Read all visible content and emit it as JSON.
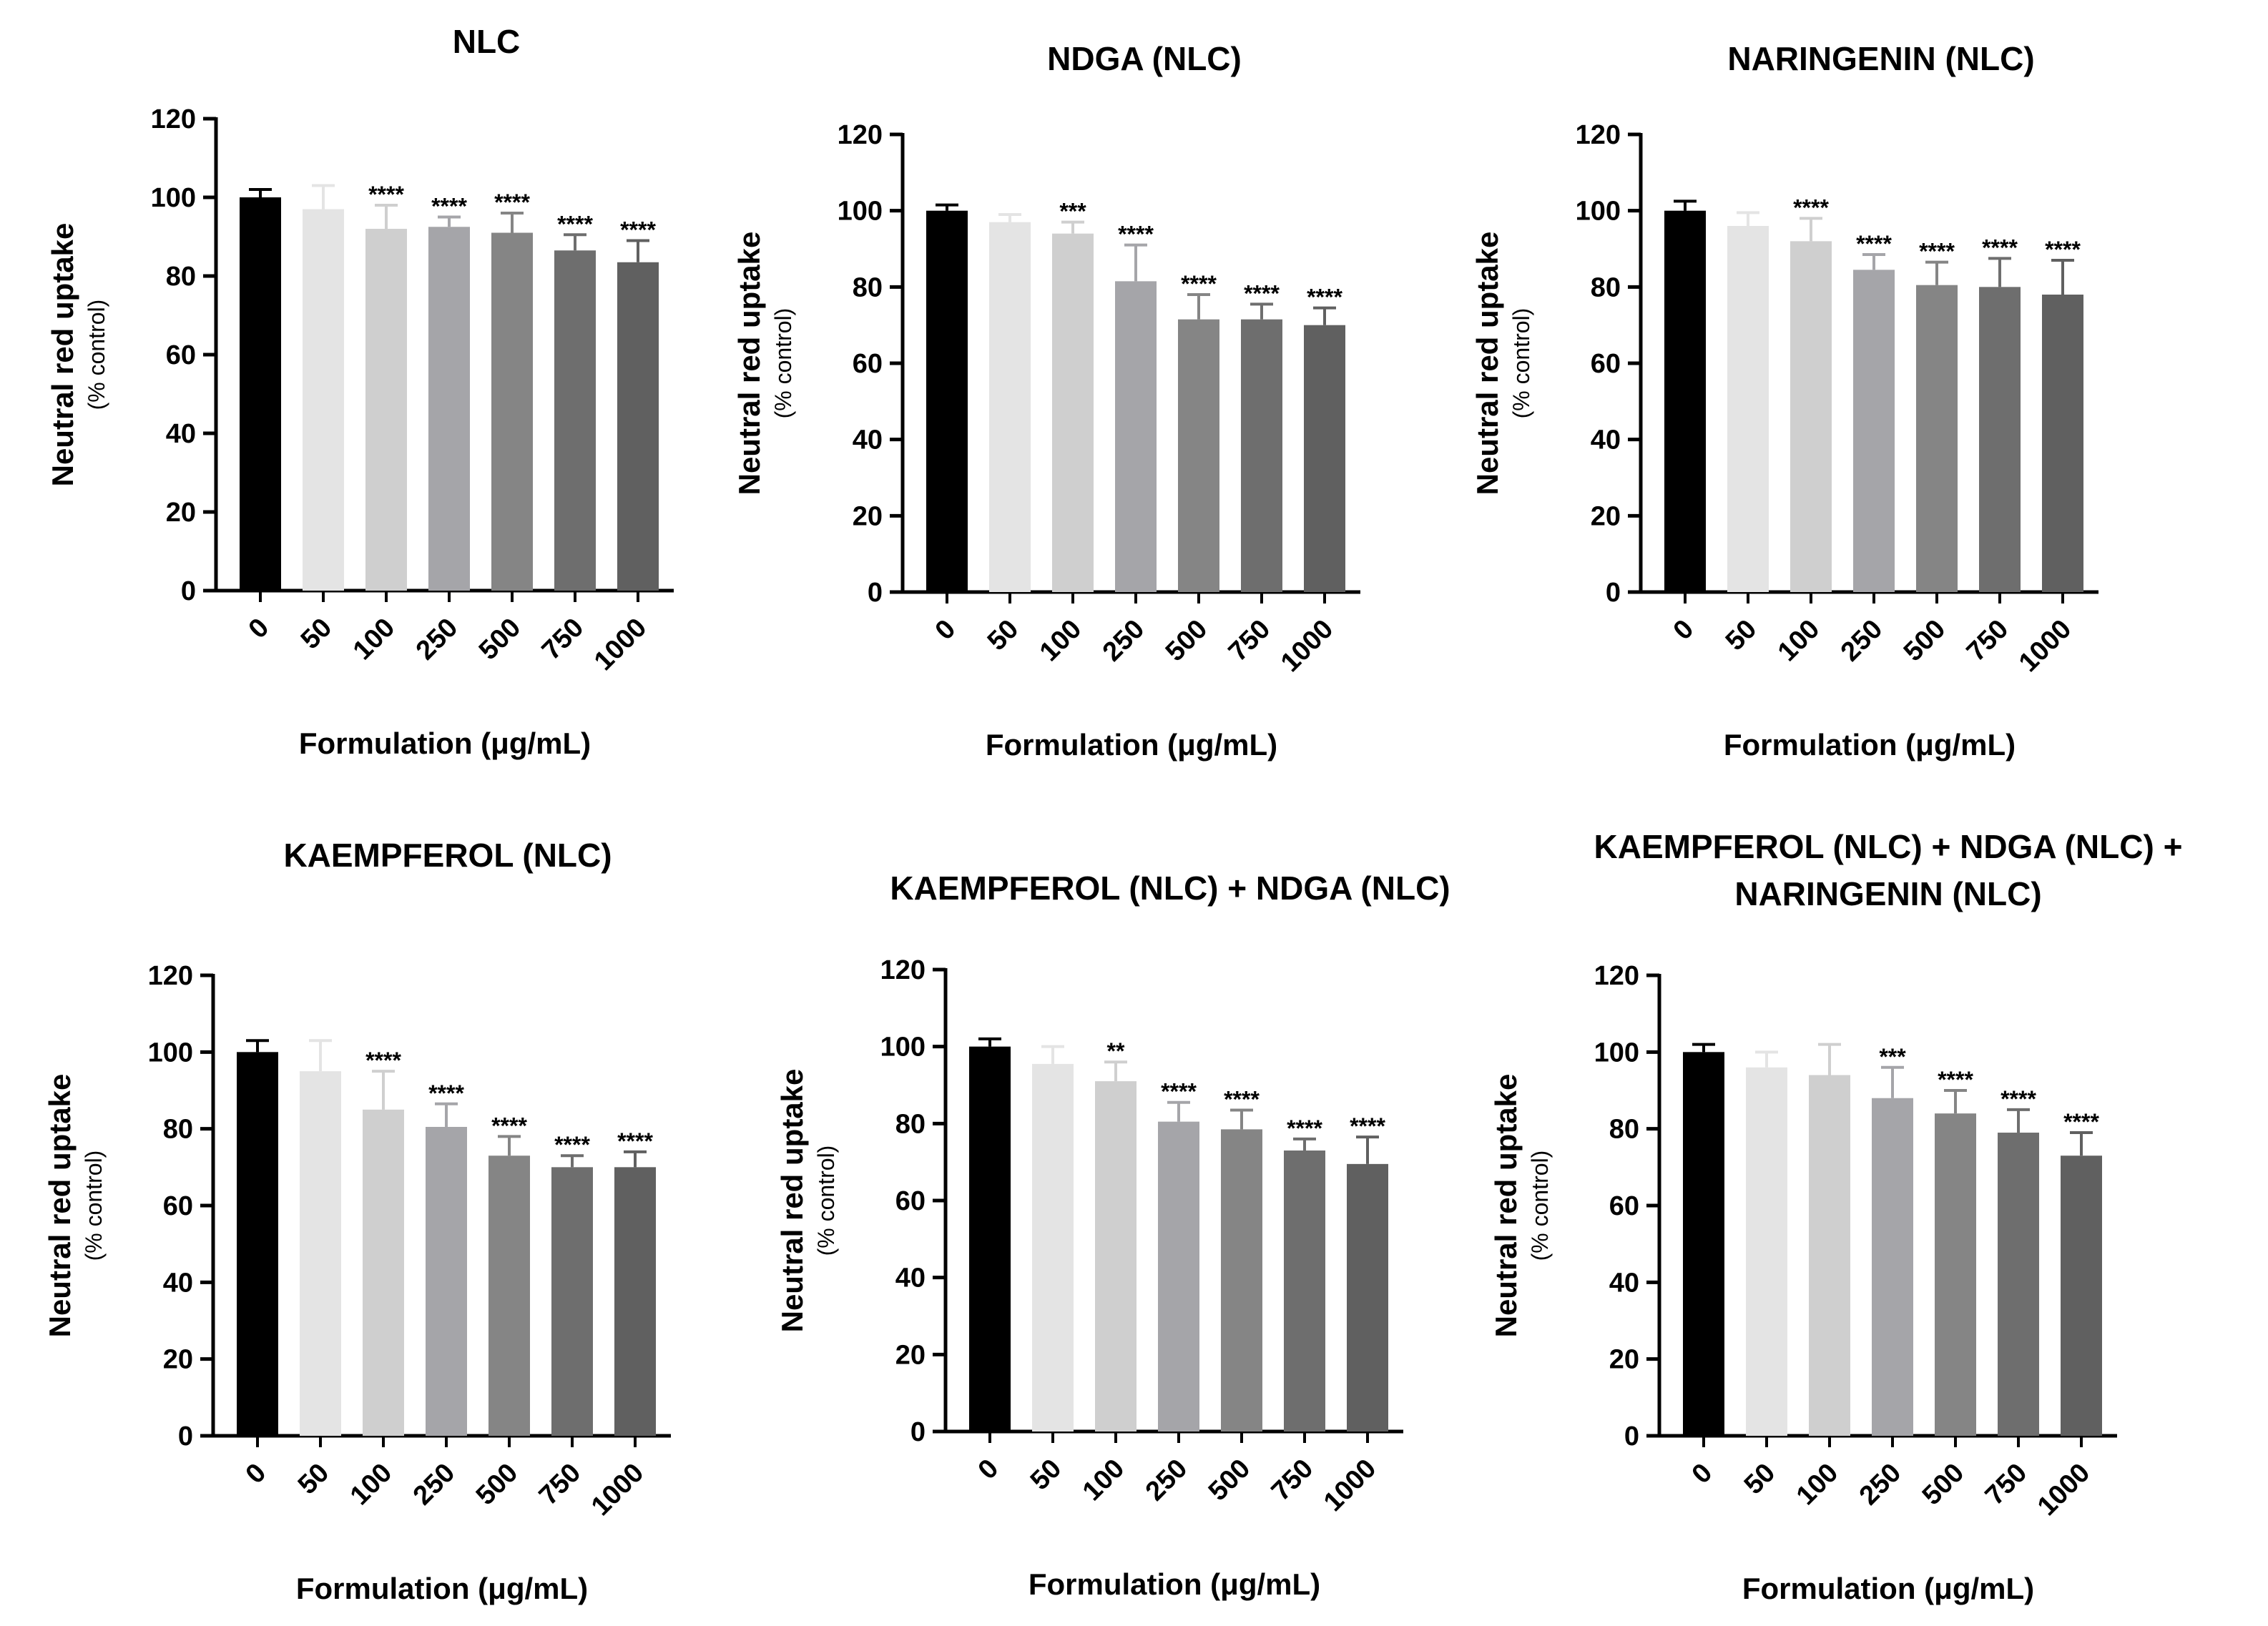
{
  "figure": {
    "ylabel": "Neutral red uptake",
    "ylabel_sub": "(% control)",
    "xlabel": "Formulation (μg/mL)"
  },
  "chart_data": [
    {
      "type": "bar",
      "title": [
        "NLC"
      ],
      "categories": [
        "0",
        "50",
        "100",
        "250",
        "500",
        "750",
        "1000"
      ],
      "values": [
        100,
        97,
        92,
        92.5,
        91,
        86.5,
        83.5
      ],
      "errors": [
        2,
        6,
        6,
        2.5,
        5,
        4,
        5.5
      ],
      "significance": [
        "",
        "",
        "****",
        "****",
        "****",
        "****",
        "****"
      ],
      "colors": [
        "#000000",
        "#e4e4e4",
        "#cfcfcf",
        "#a5a5a9",
        "#858585",
        "#6e6e6e",
        "#606060"
      ],
      "ylim": [
        0,
        120
      ],
      "yticks": [
        0,
        20,
        40,
        60,
        80,
        100,
        120
      ],
      "xlabel": "Formulation (μg/mL)",
      "ylabel": "Neutral red uptake (% control)"
    },
    {
      "type": "bar",
      "title": [
        "NDGA (NLC)"
      ],
      "categories": [
        "0",
        "50",
        "100",
        "250",
        "500",
        "750",
        "1000"
      ],
      "values": [
        100,
        97,
        94,
        81.5,
        71.5,
        71.5,
        70
      ],
      "errors": [
        1.5,
        2,
        3,
        9.5,
        6.5,
        4,
        4.5
      ],
      "significance": [
        "",
        "",
        "***",
        "****",
        "****",
        "****",
        "****"
      ],
      "colors": [
        "#000000",
        "#e4e4e4",
        "#cfcfcf",
        "#a5a5a9",
        "#858585",
        "#6e6e6e",
        "#606060"
      ],
      "ylim": [
        0,
        120
      ],
      "yticks": [
        0,
        20,
        40,
        60,
        80,
        100,
        120
      ],
      "xlabel": "Formulation (μg/mL)",
      "ylabel": "Neutral red uptake (% control)"
    },
    {
      "type": "bar",
      "title": [
        "NARINGENIN (NLC)"
      ],
      "categories": [
        "0",
        "50",
        "100",
        "250",
        "500",
        "750",
        "1000"
      ],
      "values": [
        100,
        96,
        92,
        84.5,
        80.5,
        80,
        78
      ],
      "errors": [
        2.5,
        3.5,
        6,
        4,
        6,
        7.5,
        9
      ],
      "significance": [
        "",
        "",
        "****",
        "****",
        "****",
        "****",
        "****"
      ],
      "colors": [
        "#000000",
        "#e4e4e4",
        "#cfcfcf",
        "#a5a5a9",
        "#858585",
        "#6e6e6e",
        "#606060"
      ],
      "ylim": [
        0,
        120
      ],
      "yticks": [
        0,
        20,
        40,
        60,
        80,
        100,
        120
      ],
      "xlabel": "Formulation (μg/mL)",
      "ylabel": "Neutral red uptake (% control)"
    },
    {
      "type": "bar",
      "title": [
        "KAEMPFEROL (NLC)"
      ],
      "categories": [
        "0",
        "50",
        "100",
        "250",
        "500",
        "750",
        "1000"
      ],
      "values": [
        100,
        95,
        85,
        80.5,
        73,
        70,
        70
      ],
      "errors": [
        3,
        8,
        10,
        6,
        5,
        3,
        4
      ],
      "significance": [
        "",
        "",
        "****",
        "****",
        "****",
        "****",
        "****"
      ],
      "colors": [
        "#000000",
        "#e4e4e4",
        "#cfcfcf",
        "#a5a5a9",
        "#858585",
        "#6e6e6e",
        "#606060"
      ],
      "ylim": [
        0,
        120
      ],
      "yticks": [
        0,
        20,
        40,
        60,
        80,
        100,
        120
      ],
      "xlabel": "Formulation (μg/mL)",
      "ylabel": "Neutral red uptake (% control)"
    },
    {
      "type": "bar",
      "title": [
        "KAEMPFEROL (NLC) + NDGA (NLC)"
      ],
      "categories": [
        "0",
        "50",
        "100",
        "250",
        "500",
        "750",
        "1000"
      ],
      "values": [
        100,
        95.5,
        91,
        80.5,
        78.5,
        73,
        69.5
      ],
      "errors": [
        2,
        4.5,
        5,
        5,
        5,
        3,
        7
      ],
      "significance": [
        "",
        "",
        "**",
        "****",
        "****",
        "****",
        "****"
      ],
      "colors": [
        "#000000",
        "#e4e4e4",
        "#cfcfcf",
        "#a5a5a9",
        "#858585",
        "#6e6e6e",
        "#606060"
      ],
      "ylim": [
        0,
        120
      ],
      "yticks": [
        0,
        20,
        40,
        60,
        80,
        100,
        120
      ],
      "xlabel": "Formulation (μg/mL)",
      "ylabel": "Neutral red uptake (% control)"
    },
    {
      "type": "bar",
      "title": [
        "KAEMPFEROL (NLC) + NDGA (NLC) +",
        "NARINGENIN (NLC)"
      ],
      "categories": [
        "0",
        "50",
        "100",
        "250",
        "500",
        "750",
        "1000"
      ],
      "values": [
        100,
        96,
        94,
        88,
        84,
        79,
        73
      ],
      "errors": [
        2,
        4,
        8,
        8,
        6,
        6,
        6
      ],
      "significance": [
        "",
        "",
        "",
        "***",
        "****",
        "****",
        "****"
      ],
      "colors": [
        "#000000",
        "#e4e4e4",
        "#cfcfcf",
        "#a5a5a9",
        "#858585",
        "#6e6e6e",
        "#606060"
      ],
      "ylim": [
        0,
        120
      ],
      "yticks": [
        0,
        20,
        40,
        60,
        80,
        100,
        120
      ],
      "xlabel": "Formulation (μg/mL)",
      "ylabel": "Neutral red uptake (% control)"
    }
  ]
}
